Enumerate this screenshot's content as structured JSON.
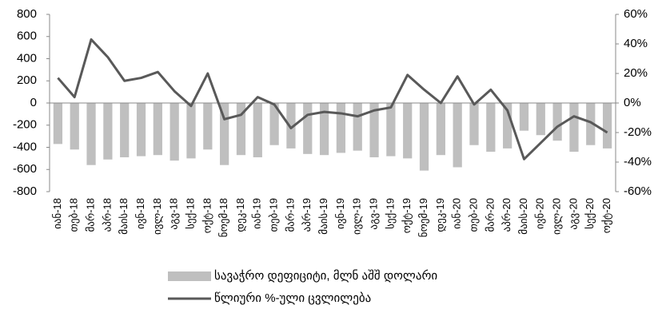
{
  "chart_data": {
    "type": "combo",
    "categories": [
      "იან-18",
      "თებ-18",
      "მარ-18",
      "აპრ-18",
      "მაის-18",
      "ივნ-18",
      "ივლ-18",
      "აგვ-18",
      "სექ-18",
      "ოქტ-18",
      "ნოემ-18",
      "დეკ-18",
      "იან-19",
      "თებ-19",
      "მარ-19",
      "აპრ-19",
      "მაის-19",
      "ივნ-19",
      "ივლ-19",
      "აგვ-19",
      "სექ-19",
      "ოქტ-19",
      "ნოემ-19",
      "დეკ-19",
      "იან-20",
      "თებ-20",
      "მარ-20",
      "აპრ-20",
      "მაის-20",
      "ივნ-20",
      "ივლ-20",
      "აგვ-20",
      "სექ-20",
      "ოქტ-20"
    ],
    "series": [
      {
        "name": "სავაჭრო დეფიციტი, მლნ აშშ დოლარი",
        "type": "bar",
        "color": "#bfbfbf",
        "values": [
          -370,
          -420,
          -560,
          -510,
          -490,
          -480,
          -470,
          -520,
          -500,
          -420,
          -560,
          -470,
          -490,
          -380,
          -410,
          -460,
          -470,
          -450,
          -430,
          -490,
          -480,
          -500,
          -610,
          -470,
          -580,
          -380,
          -440,
          -410,
          -250,
          -290,
          -340,
          -440,
          -380,
          -410
        ]
      },
      {
        "name": "წლიური %-ული ცვლილება",
        "type": "line",
        "axis": "y2",
        "color": "#595959",
        "values": [
          17,
          4,
          43,
          31,
          15,
          17,
          21,
          8,
          -2,
          20,
          -11,
          -8,
          4,
          -1,
          -17,
          -8,
          -6,
          -7,
          -9,
          -5,
          -3,
          19,
          9,
          0,
          18,
          -1,
          9,
          -5,
          -38,
          -27,
          -16,
          -9,
          -13,
          -20
        ]
      }
    ],
    "ylim": [
      -800,
      800
    ],
    "yticks": [
      -800,
      -600,
      -400,
      -200,
      0,
      200,
      400,
      600,
      800
    ],
    "y2lim": [
      -60,
      60
    ],
    "y2ticks": [
      {
        "value": -60,
        "label": "-60%"
      },
      {
        "value": -40,
        "label": "-40%"
      },
      {
        "value": -20,
        "label": "-20%"
      },
      {
        "value": 0,
        "label": "0%"
      },
      {
        "value": 20,
        "label": "20%"
      },
      {
        "value": 40,
        "label": "40%"
      },
      {
        "value": 60,
        "label": "60%"
      }
    ]
  }
}
